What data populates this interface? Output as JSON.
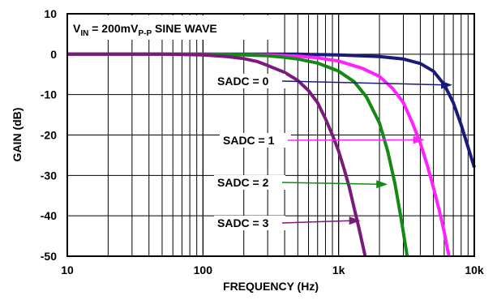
{
  "chart_data": {
    "type": "line",
    "title_parts": {
      "v": "V",
      "in": "IN",
      "value": " = 200mV",
      "pp": "P-P",
      "rest": " SINE WAVE"
    },
    "xlabel": "FREQUENCY (Hz)",
    "ylabel": "GAIN (dB)",
    "x_scale": "log",
    "xlim": [
      10,
      10000
    ],
    "ylim": [
      -50,
      10
    ],
    "x_ticks": [
      {
        "value": 10,
        "label": "10"
      },
      {
        "value": 100,
        "label": "100"
      },
      {
        "value": 1000,
        "label": "1k"
      },
      {
        "value": 10000,
        "label": "10k"
      }
    ],
    "y_ticks": [
      {
        "value": 10,
        "label": "10"
      },
      {
        "value": 0,
        "label": "0"
      },
      {
        "value": -10,
        "label": "-10"
      },
      {
        "value": -20,
        "label": "-20"
      },
      {
        "value": -30,
        "label": "-30"
      },
      {
        "value": -40,
        "label": "-40"
      },
      {
        "value": -50,
        "label": "-50"
      }
    ],
    "grid": true,
    "legend": "none",
    "series": [
      {
        "name": "SADC = 0",
        "color": "#1a1a7a",
        "points": [
          [
            10,
            0
          ],
          [
            100,
            0
          ],
          [
            500,
            0
          ],
          [
            1000,
            -0.2
          ],
          [
            2000,
            -0.6
          ],
          [
            3000,
            -1.2
          ],
          [
            4000,
            -2.3
          ],
          [
            5000,
            -4.2
          ],
          [
            6000,
            -7.5
          ],
          [
            7000,
            -12
          ],
          [
            8000,
            -17.5
          ],
          [
            9000,
            -23
          ],
          [
            10000,
            -28
          ]
        ]
      },
      {
        "name": "SADC = 1",
        "color": "#ff22ff",
        "points": [
          [
            10,
            0
          ],
          [
            100,
            0
          ],
          [
            300,
            -0.2
          ],
          [
            500,
            -0.5
          ],
          [
            700,
            -0.9
          ],
          [
            1000,
            -1.7
          ],
          [
            1500,
            -3.5
          ],
          [
            2000,
            -5.5
          ],
          [
            2500,
            -8.5
          ],
          [
            3000,
            -12
          ],
          [
            3500,
            -17
          ],
          [
            4000,
            -22
          ],
          [
            4500,
            -27.5
          ],
          [
            5000,
            -33
          ],
          [
            5500,
            -38.5
          ],
          [
            6000,
            -44
          ],
          [
            6500,
            -50
          ]
        ]
      },
      {
        "name": "SADC = 2",
        "color": "#138a13",
        "points": [
          [
            10,
            0
          ],
          [
            100,
            0
          ],
          [
            200,
            -0.2
          ],
          [
            300,
            -0.4
          ],
          [
            400,
            -0.8
          ],
          [
            500,
            -1.2
          ],
          [
            700,
            -2.2
          ],
          [
            1000,
            -4.2
          ],
          [
            1300,
            -6.8
          ],
          [
            1600,
            -10.5
          ],
          [
            2000,
            -17
          ],
          [
            2300,
            -24
          ],
          [
            2600,
            -32
          ],
          [
            2900,
            -41
          ],
          [
            3200,
            -50
          ]
        ]
      },
      {
        "name": "SADC = 3",
        "color": "#7a1a7a",
        "points": [
          [
            10,
            0
          ],
          [
            50,
            0
          ],
          [
            100,
            -0.2
          ],
          [
            150,
            -0.6
          ],
          [
            200,
            -1.1
          ],
          [
            250,
            -1.8
          ],
          [
            300,
            -2.8
          ],
          [
            400,
            -4.5
          ],
          [
            500,
            -6.5
          ],
          [
            600,
            -9
          ],
          [
            700,
            -12
          ],
          [
            800,
            -16
          ],
          [
            900,
            -20
          ],
          [
            1000,
            -24
          ],
          [
            1100,
            -28.5
          ],
          [
            1200,
            -33
          ],
          [
            1300,
            -38
          ],
          [
            1400,
            -42.5
          ],
          [
            1500,
            -47
          ],
          [
            1570,
            -50
          ]
        ]
      }
    ],
    "annotations": [
      {
        "text": "SADC = 0",
        "series": 0,
        "arrow_to": [
          6900,
          -7.6
        ]
      },
      {
        "text": "SADC = 1",
        "series": 1,
        "arrow_to": [
          4300,
          -21.2
        ]
      },
      {
        "text": "SADC = 2",
        "series": 2,
        "arrow_to": [
          2300,
          -32.2
        ]
      },
      {
        "text": "SADC = 3",
        "series": 3,
        "arrow_to": [
          1450,
          -41.2
        ]
      }
    ]
  }
}
